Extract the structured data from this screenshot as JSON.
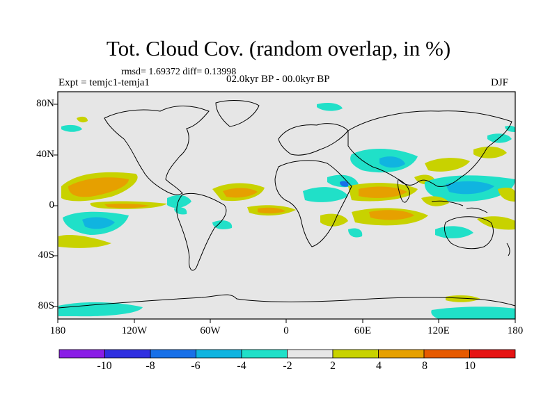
{
  "title": "Tot. Cloud Cov. (random overlap, in %)",
  "stats": "rmsd= 1.69372 diff= 0.13998",
  "experiment": "Expt = temjc1-temja1",
  "period": "02.0kyr BP - 00.0kyr BP",
  "season": "DJF",
  "map": {
    "background_color": "#e6e6e6",
    "lon_ticks": [
      "180",
      "120W",
      "60W",
      "0",
      "60E",
      "120E",
      "180"
    ],
    "lat_ticks": [
      "80N",
      "40N",
      "0",
      "40S",
      "80S"
    ]
  },
  "colorbar": {
    "labels": [
      "-10",
      "-8",
      "-6",
      "-4",
      "-2",
      "2",
      "4",
      "8",
      "10"
    ],
    "colors": [
      "#8a1ee6",
      "#3030e0",
      "#1870e8",
      "#10b4e0",
      "#20e0c8",
      "#e6e6e6",
      "#c8d200",
      "#e6a000",
      "#e65a00",
      "#e61414"
    ]
  }
}
